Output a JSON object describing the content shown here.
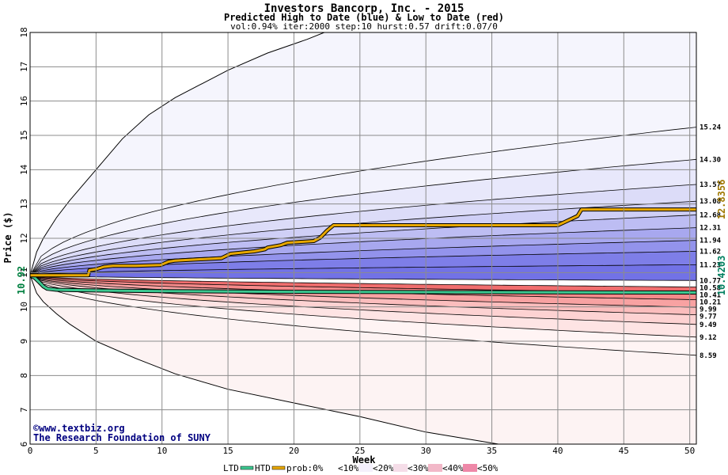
{
  "chart_data": {
    "type": "area",
    "title": "Investors Bancorp, Inc. - 2015",
    "subtitle": "Predicted High to Date (blue) &  Low to Date (red)",
    "params": "vol:0.94% iter:2000 step:10 hurst:0.57 drift:0.07/0",
    "xlabel": "Week",
    "ylabel": "Price ($)",
    "xlim": [
      0,
      50.5
    ],
    "ylim": [
      6,
      18
    ],
    "xticks": [
      0,
      5,
      10,
      15,
      20,
      25,
      30,
      35,
      40,
      45,
      50
    ],
    "yticks": [
      6,
      7,
      8,
      9,
      10,
      11,
      12,
      13,
      14,
      15,
      16,
      17,
      18
    ],
    "grid": true,
    "start_price": 10.92,
    "start_label": "10.92",
    "right_label_high": "12.8356",
    "right_label_low": "10.4203",
    "high_quantiles": [
      {
        "label": "15.24",
        "end": 15.24
      },
      {
        "label": "14.30",
        "end": 14.3
      },
      {
        "label": "13.57",
        "end": 13.57
      },
      {
        "label": "13.08",
        "end": 13.08
      },
      {
        "label": "12.68",
        "end": 12.68
      },
      {
        "label": "12.31",
        "end": 12.31
      },
      {
        "label": "11.94",
        "end": 11.94
      },
      {
        "label": "11.62",
        "end": 11.62
      },
      {
        "label": "11.23",
        "end": 11.23
      },
      {
        "label": "10.77",
        "end": 10.77
      }
    ],
    "low_quantiles": [
      {
        "label": "10.58",
        "end": 10.58
      },
      {
        "label": "10.41",
        "end": 10.41
      },
      {
        "label": "10.21",
        "end": 10.21
      },
      {
        "label": "9.99",
        "end": 9.99
      },
      {
        "label": "9.77",
        "end": 9.77
      },
      {
        "label": "9.49",
        "end": 9.49
      },
      {
        "label": "9.12",
        "end": 9.12
      },
      {
        "label": "8.59",
        "end": 8.59
      }
    ],
    "envelope_high": [
      [
        0,
        10.92
      ],
      [
        0.5,
        11.6
      ],
      [
        1,
        12.0
      ],
      [
        2,
        12.6
      ],
      [
        3,
        13.1
      ],
      [
        5,
        14.0
      ],
      [
        7,
        14.9
      ],
      [
        9,
        15.6
      ],
      [
        11,
        16.1
      ],
      [
        15,
        16.9
      ],
      [
        18,
        17.4
      ],
      [
        21,
        17.8
      ],
      [
        22.3,
        18.0
      ]
    ],
    "envelope_low": [
      [
        0,
        10.92
      ],
      [
        0.5,
        10.4
      ],
      [
        1,
        10.15
      ],
      [
        2,
        9.8
      ],
      [
        3,
        9.5
      ],
      [
        5,
        9.0
      ],
      [
        8,
        8.5
      ],
      [
        11,
        8.05
      ],
      [
        15,
        7.6
      ],
      [
        20,
        7.2
      ],
      [
        25,
        6.8
      ],
      [
        30,
        6.35
      ],
      [
        35.5,
        6.0
      ]
    ],
    "series": [
      {
        "name": "LTD",
        "color": "#3cc890",
        "points": [
          [
            0,
            10.92
          ],
          [
            0.35,
            10.85
          ],
          [
            0.7,
            10.72
          ],
          [
            1,
            10.6
          ],
          [
            1.3,
            10.53
          ],
          [
            2,
            10.5
          ],
          [
            3,
            10.49
          ],
          [
            5,
            10.48
          ],
          [
            10,
            10.46
          ],
          [
            20,
            10.44
          ],
          [
            30,
            10.43
          ],
          [
            40,
            10.425
          ],
          [
            50.5,
            10.42
          ]
        ]
      },
      {
        "name": "HTD",
        "color": "#e8a800",
        "points": [
          [
            0,
            10.92
          ],
          [
            4.4,
            10.92
          ],
          [
            4.5,
            11.07
          ],
          [
            5,
            11.1
          ],
          [
            5.6,
            11.17
          ],
          [
            6.3,
            11.2
          ],
          [
            8,
            11.2
          ],
          [
            9.9,
            11.22
          ],
          [
            10.5,
            11.32
          ],
          [
            11,
            11.35
          ],
          [
            14.5,
            11.42
          ],
          [
            15.2,
            11.55
          ],
          [
            17,
            11.62
          ],
          [
            17.8,
            11.68
          ],
          [
            18,
            11.73
          ],
          [
            19,
            11.8
          ],
          [
            19.5,
            11.87
          ],
          [
            21.5,
            11.92
          ],
          [
            22,
            12.02
          ],
          [
            22.5,
            12.22
          ],
          [
            23,
            12.38
          ],
          [
            40,
            12.38
          ],
          [
            40.5,
            12.47
          ],
          [
            41.5,
            12.65
          ],
          [
            41.8,
            12.84
          ],
          [
            50.5,
            12.84
          ]
        ]
      }
    ],
    "legend": {
      "items": [
        "LTD",
        "HTD",
        "prob:0%",
        "<10%",
        "<20%",
        "<30%",
        "<40%",
        "<50%"
      ],
      "placement": "bottom"
    },
    "credit_lines": [
      "www.textbiz.org",
      "The Research Foundation of SUNY"
    ],
    "colors": {
      "blue_bands": [
        "#f3f3fd",
        "#e8e8fb",
        "#dcdcf8",
        "#cfcff6",
        "#bdbdf3",
        "#a8a8ef",
        "#9393ec",
        "#7e7ee8",
        "#7272e6"
      ],
      "red_bands": [
        "#fff4f4",
        "#fee4e4",
        "#fdd2d2",
        "#fbbdbd",
        "#f8a2a2",
        "#f58a8a",
        "#f06e6e"
      ],
      "legend_swatches": [
        "#ffffff",
        "#f4f0fb",
        "#f5dde8",
        "#f2b8c8",
        "#ee88a8"
      ]
    }
  }
}
